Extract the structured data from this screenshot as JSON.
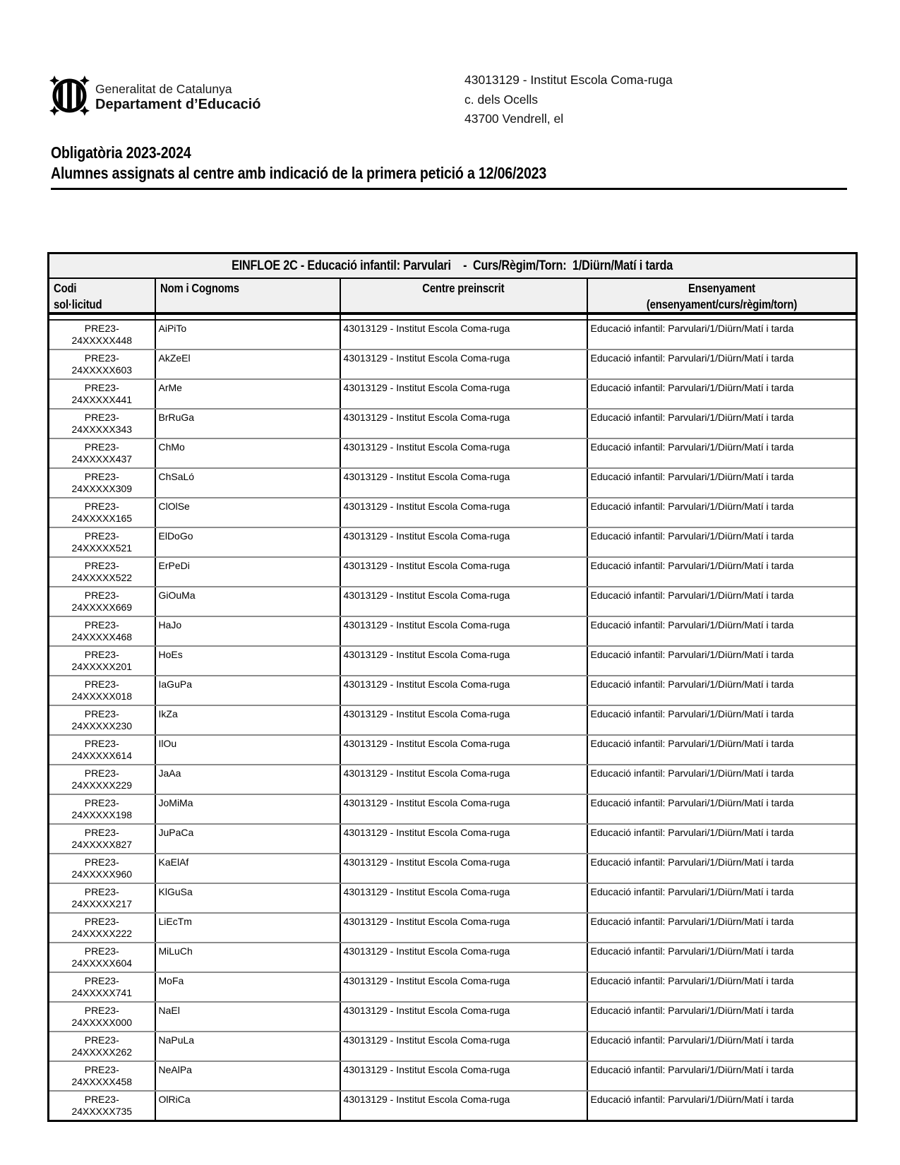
{
  "page": {
    "brand": {
      "line1": "Generalitat de Catalunya",
      "line2": "Departament d’Educació"
    },
    "institution": {
      "line1": "43013129 - Institut Escola Coma-ruga",
      "line2": "c. dels Ocells",
      "line3": "43700 Vendrell, el"
    },
    "title": {
      "line1": "Obligatòria 2023-2024",
      "line2": "Alumnes assignats al centre amb indicació de la primera petició a 12/06/2023"
    }
  },
  "colors": {
    "header_bg": "#f0f0f0",
    "border": "#000000",
    "row_divider": "#8c8c8c"
  },
  "table": {
    "group_header": "EINFLOE 2C - Educació infantil: Parvulari    -  Curs/Règim/Torn:  1/Diürn/Matí i tarda",
    "columns": [
      {
        "line1": "Codi",
        "line2": "sol·licitud"
      },
      {
        "line1": "Nom i Cognoms",
        "line2": ""
      },
      {
        "line1": "Centre preinscrit",
        "line2": ""
      },
      {
        "line1": "Ensenyament",
        "line2": "(ensenyament/curs/règim/torn)"
      }
    ],
    "rows": [
      {
        "code1": "PRE23-",
        "code2": "24XXXXX448",
        "name": "AiPiTo",
        "centre": "43013129 - Institut Escola Coma-ruga",
        "ensenyament": "Educació infantil: Parvulari/1/Diürn/Matí i tarda"
      },
      {
        "code1": "PRE23-",
        "code2": "24XXXXX603",
        "name": "AkZeEl",
        "centre": "43013129 - Institut Escola Coma-ruga",
        "ensenyament": "Educació infantil: Parvulari/1/Diürn/Matí i tarda"
      },
      {
        "code1": "PRE23-",
        "code2": "24XXXXX441",
        "name": "ArMe",
        "centre": "43013129 - Institut Escola Coma-ruga",
        "ensenyament": "Educació infantil: Parvulari/1/Diürn/Matí i tarda"
      },
      {
        "code1": "PRE23-",
        "code2": "24XXXXX343",
        "name": "BrRuGa",
        "centre": "43013129 - Institut Escola Coma-ruga",
        "ensenyament": "Educació infantil: Parvulari/1/Diürn/Matí i tarda"
      },
      {
        "code1": "PRE23-",
        "code2": "24XXXXX437",
        "name": "ChMo",
        "centre": "43013129 - Institut Escola Coma-ruga",
        "ensenyament": "Educació infantil: Parvulari/1/Diürn/Matí i tarda"
      },
      {
        "code1": "PRE23-",
        "code2": "24XXXXX309",
        "name": "ChSaLó",
        "centre": "43013129 - Institut Escola Coma-ruga",
        "ensenyament": "Educació infantil: Parvulari/1/Diürn/Matí i tarda"
      },
      {
        "code1": "PRE23-",
        "code2": "24XXXXX165",
        "name": "ClOlSe",
        "centre": "43013129 - Institut Escola Coma-ruga",
        "ensenyament": "Educació infantil: Parvulari/1/Diürn/Matí i tarda"
      },
      {
        "code1": "PRE23-",
        "code2": "24XXXXX521",
        "name": "ElDoGo",
        "centre": "43013129 - Institut Escola Coma-ruga",
        "ensenyament": "Educació infantil: Parvulari/1/Diürn/Matí i tarda"
      },
      {
        "code1": "PRE23-",
        "code2": "24XXXXX522",
        "name": "ErPeDi",
        "centre": "43013129 - Institut Escola Coma-ruga",
        "ensenyament": "Educació infantil: Parvulari/1/Diürn/Matí i tarda"
      },
      {
        "code1": "PRE23-",
        "code2": "24XXXXX669",
        "name": "GiOuMa",
        "centre": "43013129 - Institut Escola Coma-ruga",
        "ensenyament": "Educació infantil: Parvulari/1/Diürn/Matí i tarda"
      },
      {
        "code1": "PRE23-",
        "code2": "24XXXXX468",
        "name": "HaJo",
        "centre": "43013129 - Institut Escola Coma-ruga",
        "ensenyament": "Educació infantil: Parvulari/1/Diürn/Matí i tarda"
      },
      {
        "code1": "PRE23-",
        "code2": "24XXXXX201",
        "name": "HoEs",
        "centre": "43013129 - Institut Escola Coma-ruga",
        "ensenyament": "Educació infantil: Parvulari/1/Diürn/Matí i tarda"
      },
      {
        "code1": "PRE23-",
        "code2": "24XXXXX018",
        "name": "IaGuPa",
        "centre": "43013129 - Institut Escola Coma-ruga",
        "ensenyament": "Educació infantil: Parvulari/1/Diürn/Matí i tarda"
      },
      {
        "code1": "PRE23-",
        "code2": "24XXXXX230",
        "name": "IkZa",
        "centre": "43013129 - Institut Escola Coma-ruga",
        "ensenyament": "Educació infantil: Parvulari/1/Diürn/Matí i tarda"
      },
      {
        "code1": "PRE23-",
        "code2": "24XXXXX614",
        "name": "IlOu",
        "centre": "43013129 - Institut Escola Coma-ruga",
        "ensenyament": "Educació infantil: Parvulari/1/Diürn/Matí i tarda"
      },
      {
        "code1": "PRE23-",
        "code2": "24XXXXX229",
        "name": "JaAa",
        "centre": "43013129 - Institut Escola Coma-ruga",
        "ensenyament": "Educació infantil: Parvulari/1/Diürn/Matí i tarda"
      },
      {
        "code1": "PRE23-",
        "code2": "24XXXXX198",
        "name": "JoMiMa",
        "centre": "43013129 - Institut Escola Coma-ruga",
        "ensenyament": "Educació infantil: Parvulari/1/Diürn/Matí i tarda"
      },
      {
        "code1": "PRE23-",
        "code2": "24XXXXX827",
        "name": "JuPaCa",
        "centre": "43013129 - Institut Escola Coma-ruga",
        "ensenyament": "Educació infantil: Parvulari/1/Diürn/Matí i tarda"
      },
      {
        "code1": "PRE23-",
        "code2": "24XXXXX960",
        "name": "KaElAf",
        "centre": "43013129 - Institut Escola Coma-ruga",
        "ensenyament": "Educació infantil: Parvulari/1/Diürn/Matí i tarda"
      },
      {
        "code1": "PRE23-",
        "code2": "24XXXXX217",
        "name": "KlGuSa",
        "centre": "43013129 - Institut Escola Coma-ruga",
        "ensenyament": "Educació infantil: Parvulari/1/Diürn/Matí i tarda"
      },
      {
        "code1": "PRE23-",
        "code2": "24XXXXX222",
        "name": "LiEcTm",
        "centre": "43013129 - Institut Escola Coma-ruga",
        "ensenyament": "Educació infantil: Parvulari/1/Diürn/Matí i tarda"
      },
      {
        "code1": "PRE23-",
        "code2": "24XXXXX604",
        "name": "MiLuCh",
        "centre": "43013129 - Institut Escola Coma-ruga",
        "ensenyament": "Educació infantil: Parvulari/1/Diürn/Matí i tarda"
      },
      {
        "code1": "PRE23-",
        "code2": "24XXXXX741",
        "name": "MoFa",
        "centre": "43013129 - Institut Escola Coma-ruga",
        "ensenyament": "Educació infantil: Parvulari/1/Diürn/Matí i tarda"
      },
      {
        "code1": "PRE23-",
        "code2": "24XXXXX000",
        "name": "NaEl",
        "centre": "43013129 - Institut Escola Coma-ruga",
        "ensenyament": "Educació infantil: Parvulari/1/Diürn/Matí i tarda"
      },
      {
        "code1": "PRE23-",
        "code2": "24XXXXX262",
        "name": "NaPuLa",
        "centre": "43013129 - Institut Escola Coma-ruga",
        "ensenyament": "Educació infantil: Parvulari/1/Diürn/Matí i tarda"
      },
      {
        "code1": "PRE23-",
        "code2": "24XXXXX458",
        "name": "NeAlPa",
        "centre": "43013129 - Institut Escola Coma-ruga",
        "ensenyament": "Educació infantil: Parvulari/1/Diürn/Matí i tarda"
      },
      {
        "code1": "PRE23-",
        "code2": "24XXXXX735",
        "name": "OlRiCa",
        "centre": "43013129 - Institut Escola Coma-ruga",
        "ensenyament": "Educació infantil: Parvulari/1/Diürn/Matí i tarda"
      }
    ]
  }
}
